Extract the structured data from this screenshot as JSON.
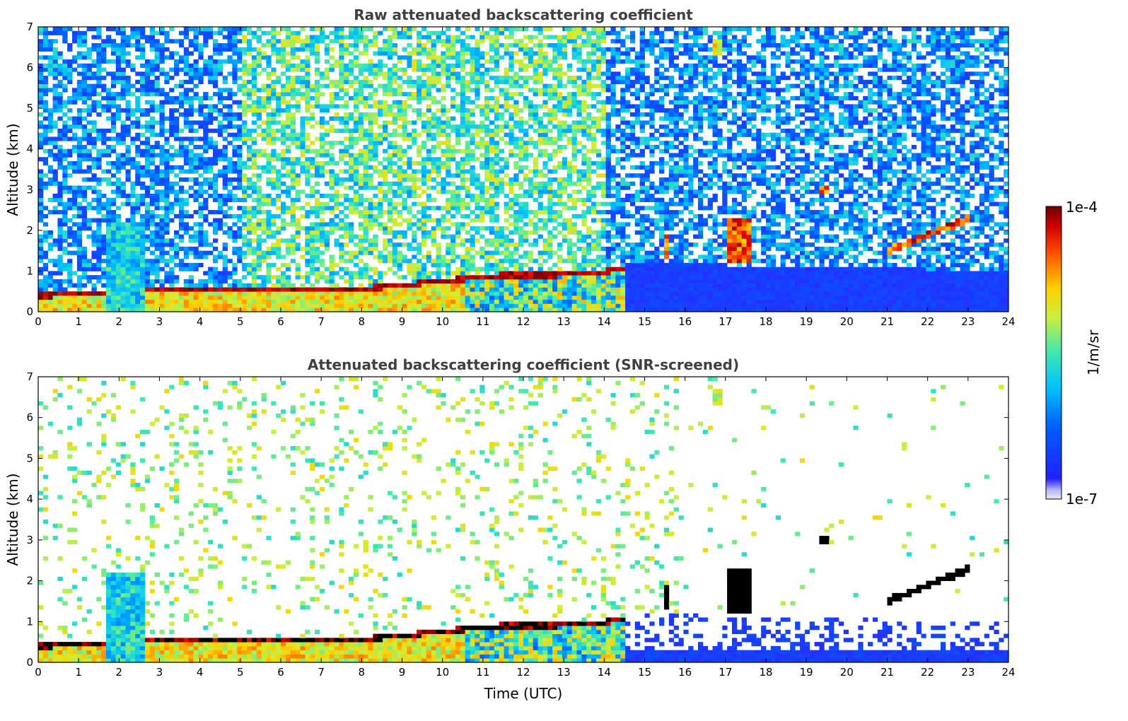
{
  "chart_data": [
    {
      "type": "heatmap",
      "title": "Raw attenuated backscattering coefficient",
      "xlabel": "",
      "ylabel": "Altitude (km)",
      "xlim": [
        0,
        24
      ],
      "ylim": [
        0,
        7
      ],
      "xticks": [
        "0",
        "1",
        "2",
        "3",
        "4",
        "5",
        "6",
        "7",
        "8",
        "9",
        "10",
        "11",
        "12",
        "13",
        "14",
        "15",
        "16",
        "17",
        "18",
        "19",
        "20",
        "21",
        "22",
        "23",
        "24"
      ],
      "yticks": [
        "0",
        "1",
        "2",
        "3",
        "4",
        "5",
        "6",
        "7"
      ],
      "screened": false,
      "features": [
        {
          "name": "boundary-layer",
          "t_start": 0,
          "t_end": 14.5,
          "top_km": [
            0.45,
            0.5,
            0.55,
            0.6,
            0.6,
            0.6,
            0.6,
            0.6,
            0.65,
            0.75,
            0.85,
            0.95,
            0.95,
            1.0,
            1.1
          ],
          "level": 0.82
        },
        {
          "name": "aerosol-plume",
          "t_start": 1.7,
          "t_end": 2.6,
          "top_km": 2.2,
          "level": 0.55
        },
        {
          "name": "cloud",
          "t_start": 15.5,
          "t_end": 15.6,
          "base_km": 1.35,
          "top_km": 1.85,
          "level": 0.95
        },
        {
          "name": "cloud",
          "t_start": 17.0,
          "t_end": 17.6,
          "base_km": 1.2,
          "top_km": 2.3,
          "level": 0.95
        },
        {
          "name": "cloud",
          "t_start": 19.3,
          "t_end": 19.5,
          "base_km": 2.95,
          "top_km": 3.1,
          "level": 0.95
        },
        {
          "name": "cloud",
          "t_start": 21.0,
          "t_end": 23.0,
          "base_km": 1.4,
          "top_km": 2.35,
          "level": 0.97
        },
        {
          "name": "cloud",
          "t_start": 16.7,
          "t_end": 16.9,
          "base_km": 6.3,
          "top_km": 6.7,
          "level": 0.8
        }
      ]
    },
    {
      "type": "heatmap",
      "title": "Attenuated backscattering coefficient (SNR-screened)",
      "xlabel": "Time (UTC)",
      "ylabel": "Altitude (km)",
      "xlim": [
        0,
        24
      ],
      "ylim": [
        0,
        7
      ],
      "xticks": [
        "0",
        "1",
        "2",
        "3",
        "4",
        "5",
        "6",
        "7",
        "8",
        "9",
        "10",
        "11",
        "12",
        "13",
        "14",
        "15",
        "16",
        "17",
        "18",
        "19",
        "20",
        "21",
        "22",
        "23",
        "24"
      ],
      "yticks": [
        "0",
        "1",
        "2",
        "3",
        "4",
        "5",
        "6",
        "7"
      ],
      "screened": true
    }
  ],
  "colorbar": {
    "label": "1/m/sr",
    "max_label": "1e-4",
    "min_label": "1e-7",
    "colormap": [
      "#e8e8f8",
      "#0000ff",
      "#00b0ff",
      "#40e0c0",
      "#c8f040",
      "#ffd000",
      "#ff6000",
      "#c00000",
      "#800000"
    ]
  }
}
